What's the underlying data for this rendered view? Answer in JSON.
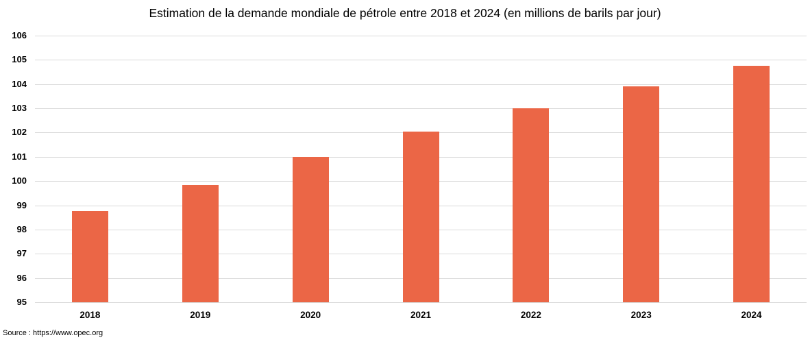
{
  "chart_data": {
    "type": "bar",
    "title": "Estimation de la demande mondiale de pétrole entre 2018 et 2024 (en millions de barils par jour)",
    "categories": [
      "2018",
      "2019",
      "2020",
      "2021",
      "2022",
      "2023",
      "2024"
    ],
    "values": [
      98.75,
      99.85,
      101.0,
      102.05,
      103.0,
      103.9,
      104.75
    ],
    "ylabel": "",
    "xlabel": "",
    "ylim": [
      95,
      106
    ],
    "ytick_step": 1,
    "yticks": [
      95,
      96,
      97,
      98,
      99,
      100,
      101,
      102,
      103,
      104,
      105,
      106
    ],
    "grid": true,
    "legend_position": "none",
    "bar_color": "#EB6646",
    "gridline_color": "#D9D9D9",
    "source": "Source : https://www.opec.org"
  }
}
